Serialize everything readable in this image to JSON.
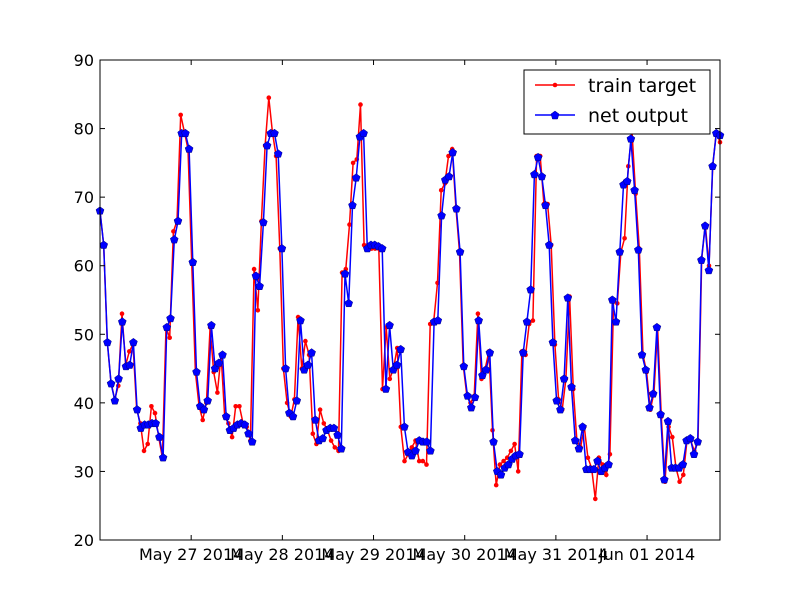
{
  "chart_data": {
    "type": "line",
    "title": "",
    "xlabel": "",
    "ylabel": "",
    "ylim": [
      20,
      90
    ],
    "y_ticks": [
      20,
      30,
      40,
      50,
      60,
      70,
      80,
      90
    ],
    "x_ticks": [
      {
        "x": 4,
        "label": "May 27 2014"
      },
      {
        "x": 8,
        "label": "May 28 2014"
      },
      {
        "x": 12,
        "label": "May 29 2014"
      },
      {
        "x": 16,
        "label": "May 30 2014"
      },
      {
        "x": 20,
        "label": "May 31 2014"
      },
      {
        "x": 24,
        "label": "Jun 01 2014"
      }
    ],
    "xlim": [
      0,
      27.2
    ],
    "grid": false,
    "legend_position": "top-right",
    "series": [
      {
        "name": "train target",
        "color": "#ff0000",
        "marker": "dot",
        "values": [
          68.0,
          63.0,
          48.8,
          43.0,
          40.5,
          42.5,
          53.0,
          45.5,
          47.5,
          48.5,
          39.0,
          37.0,
          33.0,
          34.0,
          39.5,
          38.5,
          35.0,
          32.0,
          51.0,
          49.5,
          65.0,
          66.5,
          82.0,
          79.5,
          77.0,
          60.5,
          44.5,
          39.5,
          37.5,
          40.0,
          51.0,
          44.5,
          41.5,
          47.0,
          38.0,
          37.0,
          35.0,
          39.5,
          39.5,
          37.0,
          36.5,
          34.5,
          59.5,
          53.5,
          66.5,
          77.5,
          84.5,
          79.5,
          76.0,
          62.5,
          45.0,
          40.0,
          38.0,
          40.5,
          52.5,
          45.0,
          49.0,
          47.0,
          35.5,
          34.0,
          39.0,
          37.0,
          36.0,
          34.5,
          33.5,
          33.0,
          59.0,
          59.5,
          66.0,
          75.0,
          75.5,
          83.5,
          63.0,
          63.0,
          62.5,
          62.5,
          62.5,
          42.0,
          51.0,
          43.5,
          45.0,
          48.0,
          36.5,
          31.5,
          32.5,
          33.5,
          34.5,
          31.5,
          31.5,
          31.0,
          51.5,
          52.0,
          57.5,
          71.0,
          72.0,
          76.0,
          77.0,
          68.5,
          62.0,
          45.5,
          41.0,
          40.0,
          41.0,
          53.0,
          43.5,
          45.0,
          47.5,
          36.0,
          28.0,
          31.0,
          31.5,
          32.0,
          33.0,
          34.0,
          30.0,
          47.5,
          47.0,
          51.5,
          52.0,
          76.0,
          76.0,
          69.0,
          69.0,
          63.0,
          48.5,
          40.5,
          39.0,
          43.5,
          55.5,
          42.0,
          34.5,
          33.5,
          36.5,
          32.0,
          30.5,
          26.0,
          32.0,
          31.0,
          29.5,
          32.5,
          55.0,
          54.5,
          62.0,
          64.0,
          74.5,
          79.5,
          70.5,
          62.5,
          47.0,
          44.5,
          39.0,
          41.5,
          51.0,
          38.0,
          28.5,
          36.5,
          35.0,
          30.5,
          28.5,
          29.5,
          34.5,
          34.5,
          33.0,
          34.5,
          61.0,
          66.0,
          60.0,
          74.5,
          79.5,
          78.0
        ]
      },
      {
        "name": "net output",
        "color": "#0000ff",
        "marker": "pentagon",
        "values": [
          68.0,
          63.0,
          48.8,
          42.8,
          40.3,
          43.5,
          51.8,
          45.3,
          45.5,
          48.8,
          39.0,
          36.3,
          36.8,
          36.8,
          37.0,
          37.0,
          35.0,
          32.0,
          51.0,
          52.3,
          63.8,
          66.5,
          79.3,
          79.3,
          77.0,
          60.5,
          44.5,
          39.5,
          39.0,
          40.3,
          51.3,
          45.0,
          45.8,
          47.0,
          38.0,
          36.0,
          36.3,
          36.8,
          37.0,
          36.8,
          35.5,
          34.3,
          58.5,
          57.0,
          66.3,
          77.5,
          79.3,
          79.3,
          76.3,
          62.5,
          45.0,
          38.5,
          38.0,
          40.3,
          52.0,
          44.8,
          45.5,
          47.3,
          37.5,
          34.5,
          34.8,
          36.0,
          36.3,
          36.3,
          35.3,
          33.3,
          58.8,
          54.5,
          68.8,
          72.8,
          78.8,
          79.3,
          62.5,
          63.0,
          63.0,
          62.8,
          62.5,
          42.0,
          51.3,
          44.8,
          45.5,
          47.8,
          36.5,
          32.8,
          32.3,
          33.0,
          34.5,
          34.3,
          34.3,
          33.0,
          51.8,
          52.0,
          67.3,
          72.5,
          73.0,
          76.5,
          68.3,
          62.0,
          45.3,
          41.0,
          39.3,
          40.8,
          52.0,
          44.0,
          44.8,
          47.3,
          34.3,
          30.0,
          29.5,
          30.5,
          31.0,
          31.8,
          32.3,
          32.5,
          47.3,
          51.8,
          56.5,
          73.3,
          75.8,
          73.0,
          68.8,
          63.0,
          48.8,
          40.3,
          39.0,
          43.5,
          55.3,
          42.3,
          34.5,
          33.3,
          36.5,
          30.3,
          30.3,
          30.3,
          31.5,
          30.0,
          30.5,
          31.0,
          55.0,
          51.8,
          62.0,
          71.8,
          72.3,
          78.5,
          71.0,
          62.3,
          47.0,
          44.8,
          39.3,
          41.3,
          51.0,
          38.3,
          28.8,
          37.3,
          30.5,
          30.5,
          30.5,
          31.0,
          34.5,
          34.8,
          32.5,
          34.3,
          60.8,
          65.8,
          59.3,
          74.5,
          79.3,
          79.0
        ]
      }
    ]
  }
}
